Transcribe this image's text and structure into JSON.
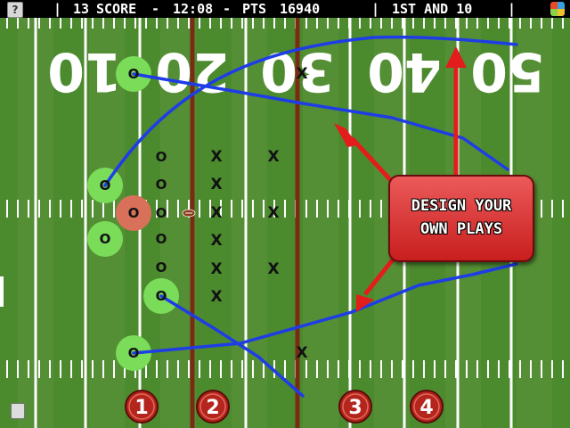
{
  "header": {
    "down_text": "13",
    "score_label": "SCORE",
    "sep1": "-",
    "clock": "12:08",
    "sep2": "-",
    "pts_label": "PTS",
    "pts_value": "16940",
    "down_distance": "1ST AND 10",
    "help_label": "?"
  },
  "field": {
    "yard_numbers": [
      "10",
      "20",
      "30",
      "40",
      "50"
    ]
  },
  "callout": {
    "line1": "DESIGN YOUR",
    "line2": "OWN PLAYS"
  },
  "formation_buttons": [
    "1",
    "2",
    "3",
    "4"
  ],
  "offense_marker": "O",
  "defense_marker": "X",
  "colors": {
    "field_green": "#4c8a2e",
    "route_blue": "#1e3de6",
    "arrow_red": "#e31c1c",
    "highlight_green": "#7bdc5a",
    "selected_red": "#d8705a",
    "scrimmage_line": "#7a2b13",
    "callout_red": "#d83030"
  }
}
